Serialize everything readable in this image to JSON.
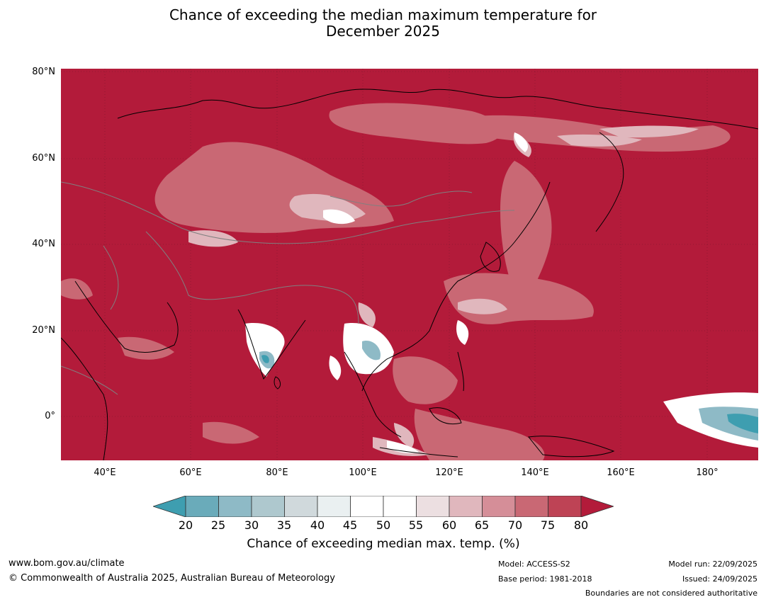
{
  "title": {
    "line1": "Chance of exceeding the median maximum temperature for",
    "line2": "December 2025"
  },
  "map": {
    "lat_labels": [
      "80°N",
      "60°N",
      "40°N",
      "20°N",
      "0°"
    ],
    "lon_labels": [
      "40°E",
      "60°E",
      "80°E",
      "100°E",
      "120°E",
      "140°E",
      "160°E",
      "180°"
    ],
    "base_color": "#b31b3a",
    "coast_color": "#000000",
    "border_color": "#808080"
  },
  "colorbar": {
    "ticks": [
      "20",
      "25",
      "30",
      "35",
      "40",
      "45",
      "50",
      "55",
      "60",
      "65",
      "70",
      "75",
      "80"
    ],
    "colors": [
      "#3e9eb0",
      "#6aabba",
      "#8ebac6",
      "#aec8ce",
      "#d0d9dc",
      "#eaf0f1",
      "#ffffff",
      "#ffffff",
      "#ecdfe1",
      "#e0b7bd",
      "#d58e98",
      "#c96874",
      "#be4355",
      "#b31b3a"
    ],
    "label": "Chance of exceeding median max. temp. (%)"
  },
  "footer": {
    "website": "www.bom.gov.au/climate",
    "copyright": "© Commonwealth of Australia 2025, Australian Bureau of Meteorology",
    "model": "Model: ACCESS-S2",
    "base_period": "Base period: 1981-2018",
    "model_run": "Model run: 22/09/2025",
    "issued": "Issued: 24/09/2025",
    "disclaimer": "Boundaries are not considered authoritative"
  }
}
